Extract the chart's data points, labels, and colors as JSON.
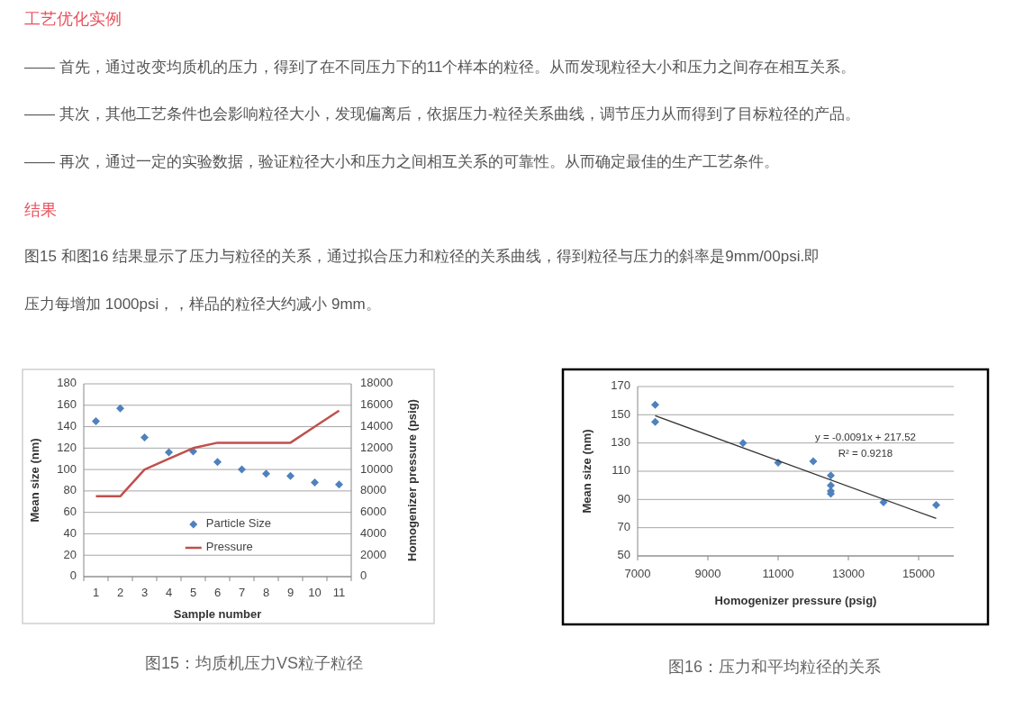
{
  "chart_data": [
    {
      "type": "scatter",
      "categories": [
        "1",
        "2",
        "3",
        "4",
        "5",
        "6",
        "7",
        "8",
        "9",
        "10",
        "11"
      ],
      "xlabel": "Sample number",
      "ylabel": "Mean size (nm)",
      "y2label": "Homogenizer pressure (psig)",
      "ylim": [
        0,
        180
      ],
      "yticks": [
        0,
        20,
        40,
        60,
        80,
        100,
        120,
        140,
        160,
        180
      ],
      "y2lim": [
        0,
        18000
      ],
      "y2ticks": [
        0,
        2000,
        4000,
        6000,
        8000,
        10000,
        12000,
        14000,
        16000,
        18000
      ],
      "grid": "y",
      "legend": "bottom",
      "series": [
        {
          "name": "Particle Size",
          "type": "scatter",
          "marker": "diamond",
          "color": "#4f81bd",
          "values": [
            145,
            157,
            130,
            116,
            117,
            107,
            100,
            96,
            94,
            88,
            86
          ]
        },
        {
          "name": "Pressure",
          "type": "line",
          "axis": "y2",
          "color": "#c0504d",
          "values": [
            7500,
            7500,
            10000,
            11000,
            12000,
            12500,
            12500,
            12500,
            12500,
            14000,
            15500
          ]
        }
      ],
      "annotations": [
        "工艺优化实例",
        "—— 首先，通过改变均质机的压力，得到了在不同压力下的11个样本的粒径。从而发现粒径大小和压力之间存在相互关系。",
        "—— 其次，其他工艺条件也会影响粒径大小，发现偏离后，依据压力-粒径关系曲线，调节压力从而得到了目标粒径的产品。",
        "—— 再次，通过一定的实验数据，验证粒径大小和压力之间相互关系的可靠性。从而确定最佳的生产工艺条件。",
        "结果",
        "图15 和图16 结果显示了压力与粒径的关系，通过拟合压力和粒径的关系曲线，得到粒径与压力的斜率是9mm/00psi.即",
        "压力每增加 1000psi，，样品的粒径大约减小 9mm。",
        "图15：均质机压力VS粒子粒径"
      ]
    },
    {
      "type": "scatter",
      "xlabel": "Homogenizer pressure (psig)",
      "ylabel": "Mean size (nm)",
      "xlim": [
        7000,
        16000
      ],
      "xticks": [
        7000,
        9000,
        11000,
        13000,
        15000
      ],
      "ylim": [
        50,
        170
      ],
      "yticks": [
        50,
        70,
        90,
        110,
        130,
        150,
        170
      ],
      "grid": "y",
      "series": [
        {
          "type": "scatter",
          "marker": "diamond",
          "color": "#4f81bd",
          "x": [
            7500,
            7500,
            10000,
            11000,
            12000,
            12500,
            12500,
            12500,
            12500,
            14000,
            15500
          ],
          "values": [
            145,
            157,
            130,
            116,
            117,
            107,
            100,
            96,
            94,
            88,
            86
          ]
        },
        {
          "type": "line",
          "color": "#333333",
          "x": [
            7500,
            15500
          ],
          "values": [
            149.3,
            76.5
          ]
        }
      ],
      "annotations": [
        "y = -0.0091x + 217.52",
        "R² = 0.9218",
        "图16：压力和平均粒径的关系"
      ]
    }
  ]
}
